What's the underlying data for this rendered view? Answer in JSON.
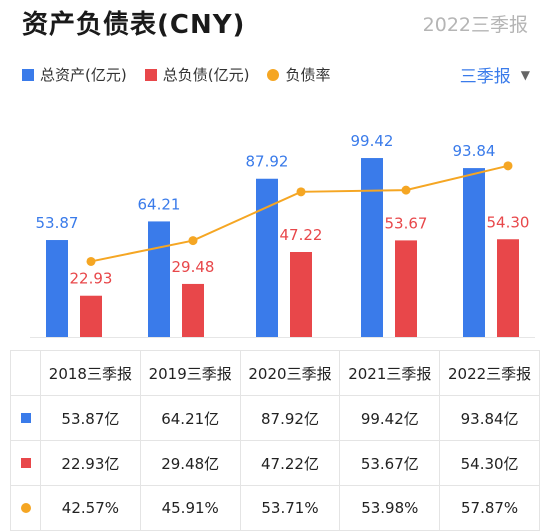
{
  "header": {
    "title": "资产负债表(CNY)",
    "period": "2022三季报"
  },
  "period_selector": {
    "label": "三季报",
    "caret": "▼"
  },
  "colors": {
    "assets": "#3a7bea",
    "liabilities": "#e8474a",
    "ratio": "#f5a623"
  },
  "chart_data": {
    "type": "bar",
    "categories": [
      "2018三季报",
      "2019三季报",
      "2020三季报",
      "2021三季报",
      "2022三季报"
    ],
    "series": [
      {
        "name": "总资产(亿元)",
        "kind": "bar",
        "values": [
          53.87,
          64.21,
          87.92,
          99.42,
          93.84
        ],
        "labels": [
          "53.87",
          "64.21",
          "87.92",
          "99.42",
          "93.84"
        ]
      },
      {
        "name": "总负债(亿元)",
        "kind": "bar",
        "values": [
          22.93,
          29.48,
          47.22,
          53.67,
          54.3
        ],
        "labels": [
          "22.93",
          "29.48",
          "47.22",
          "53.67",
          "54.30"
        ]
      },
      {
        "name": "负债率",
        "kind": "line",
        "values": [
          42.57,
          45.91,
          53.71,
          53.98,
          57.87
        ]
      }
    ],
    "legend": "top-left",
    "grid": false
  },
  "table": {
    "headers": [
      "2018三季报",
      "2019三季报",
      "2020三季报",
      "2021三季报",
      "2022三季报"
    ],
    "rows": [
      {
        "series": "assets",
        "cells": [
          "53.87亿",
          "64.21亿",
          "87.92亿",
          "99.42亿",
          "93.84亿"
        ]
      },
      {
        "series": "liabilities",
        "cells": [
          "22.93亿",
          "29.48亿",
          "47.22亿",
          "53.67亿",
          "54.30亿"
        ]
      },
      {
        "series": "ratio",
        "cells": [
          "42.57%",
          "45.91%",
          "53.71%",
          "53.98%",
          "57.87%"
        ]
      }
    ]
  }
}
